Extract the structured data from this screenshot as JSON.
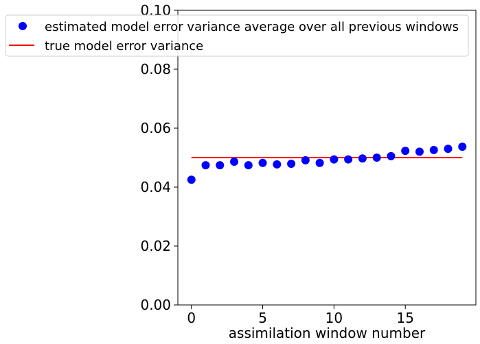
{
  "chart_data": {
    "type": "scatter",
    "title": "",
    "xlabel": "assimilation window number",
    "ylabel": "",
    "xlim": [
      -0.95,
      19.95
    ],
    "ylim": [
      0.0,
      0.1
    ],
    "xticks": [
      0,
      5,
      10,
      15
    ],
    "yticks": [
      0.0,
      0.02,
      0.04,
      0.06,
      0.08,
      0.1
    ],
    "xtick_labels": [
      "0",
      "5",
      "10",
      "15"
    ],
    "ytick_labels": [
      "0.00",
      "0.02",
      "0.04",
      "0.06",
      "0.08",
      "0.10"
    ],
    "grid": false,
    "legend_placement": "top-right",
    "series": [
      {
        "name": "estimated model error variance average over all previous windows",
        "kind": "markers",
        "color": "#0000ff",
        "x": [
          0,
          1,
          2,
          3,
          4,
          5,
          6,
          7,
          8,
          9,
          10,
          11,
          12,
          13,
          14,
          15,
          16,
          17,
          18,
          19
        ],
        "y": [
          0.0425,
          0.0474,
          0.0474,
          0.0486,
          0.0474,
          0.0482,
          0.0477,
          0.0479,
          0.0491,
          0.0482,
          0.0494,
          0.0494,
          0.0497,
          0.05,
          0.0505,
          0.0523,
          0.052,
          0.0526,
          0.053,
          0.0537
        ]
      },
      {
        "name": "true model error variance",
        "kind": "line",
        "color": "#ff0000",
        "x": [
          0,
          19
        ],
        "y": [
          0.05,
          0.05
        ]
      }
    ]
  }
}
